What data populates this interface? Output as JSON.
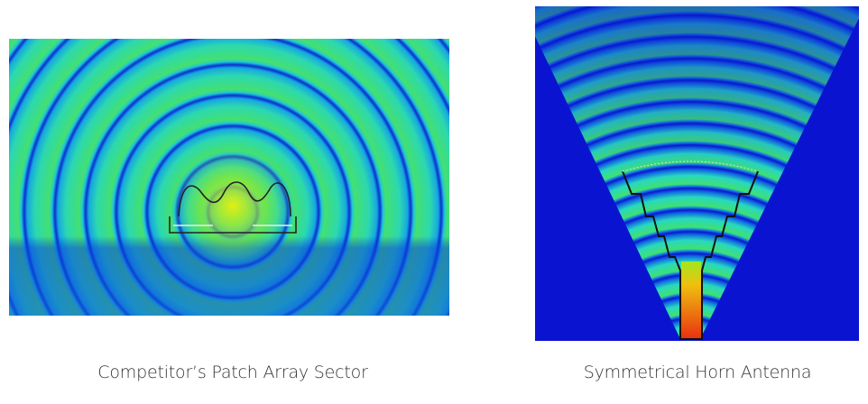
{
  "figures": [
    {
      "caption": "Competitor’s Patch Array Sector",
      "colors": {
        "field": "#33e07a",
        "ring": "#0a3cd8",
        "hot": "#e8e80a"
      }
    },
    {
      "caption": "Symmetrical Horn Antenna",
      "colors": {
        "background": "#0a14d0",
        "ring": "#25d0e0",
        "hot": "#e83010"
      }
    }
  ]
}
